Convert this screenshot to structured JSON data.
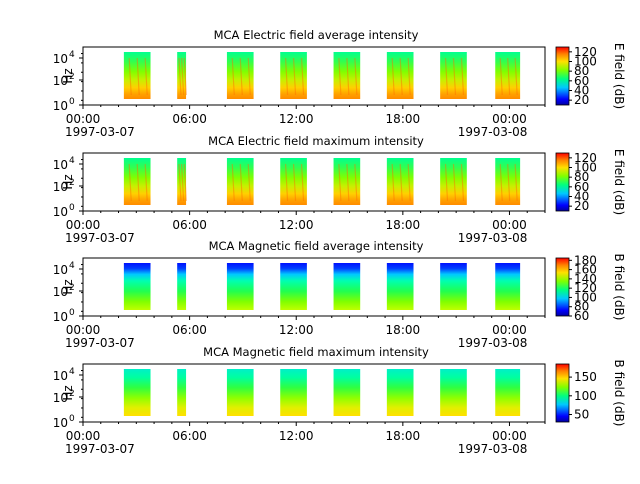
{
  "x_tick_labels": [
    "00:00",
    "06:00",
    "12:00",
    "18:00",
    "00:00"
  ],
  "date_start": "1997-03-07",
  "date_end": "1997-03-08",
  "y_tick_exponents": [
    "0",
    "2",
    "4"
  ],
  "y_tick_base": "10",
  "chart_data": [
    {
      "type": "heatmap",
      "title": "MCA  Electric field average intensity",
      "ylabel": "Hz",
      "yscale": "log",
      "ylim": [
        1,
        50000
      ],
      "xlim": [
        "1997-03-07T00:00",
        "1997-03-08T00:00"
      ],
      "colorbar_label": "E field (dB)",
      "colorbar_ticks": [
        "20",
        "40",
        "60",
        "80",
        "100",
        "120"
      ],
      "colorbar_range": [
        10,
        130
      ],
      "data_blocks_hours": [
        [
          2.3,
          3.8
        ],
        [
          5.3,
          5.8
        ],
        [
          8.1,
          9.6
        ],
        [
          11.1,
          12.6
        ],
        [
          14.1,
          15.6
        ],
        [
          17.1,
          18.6
        ],
        [
          20.1,
          21.6
        ],
        [
          23.2,
          24.6
        ]
      ],
      "level_profile": "electric"
    },
    {
      "type": "heatmap",
      "title": "MCA  Electric field maximum intensity",
      "ylabel": "Hz",
      "yscale": "log",
      "ylim": [
        1,
        50000
      ],
      "xlim": [
        "1997-03-07T00:00",
        "1997-03-08T00:00"
      ],
      "colorbar_label": "E field (dB)",
      "colorbar_ticks": [
        "20",
        "40",
        "60",
        "80",
        "100",
        "120"
      ],
      "colorbar_range": [
        10,
        130
      ],
      "data_blocks_hours": [
        [
          2.3,
          3.8
        ],
        [
          5.3,
          5.8
        ],
        [
          8.1,
          9.6
        ],
        [
          11.1,
          12.6
        ],
        [
          14.1,
          15.6
        ],
        [
          17.1,
          18.6
        ],
        [
          20.1,
          21.6
        ],
        [
          23.2,
          24.6
        ]
      ],
      "level_profile": "electric"
    },
    {
      "type": "heatmap",
      "title": "MCA  Magnetic field average intensity",
      "ylabel": "Hz",
      "yscale": "log",
      "ylim": [
        1,
        50000
      ],
      "xlim": [
        "1997-03-07T00:00",
        "1997-03-08T00:00"
      ],
      "colorbar_label": "B field (dB)",
      "colorbar_ticks": [
        "60",
        "80",
        "100",
        "120",
        "140",
        "160",
        "180"
      ],
      "colorbar_range": [
        60,
        185
      ],
      "data_blocks_hours": [
        [
          2.3,
          3.8
        ],
        [
          5.3,
          5.8
        ],
        [
          8.1,
          9.6
        ],
        [
          11.1,
          12.6
        ],
        [
          14.1,
          15.6
        ],
        [
          17.1,
          18.6
        ],
        [
          20.1,
          21.6
        ],
        [
          23.2,
          24.6
        ]
      ],
      "level_profile": "magnetic-avg"
    },
    {
      "type": "heatmap",
      "title": "MCA  Magnetic field maximum intensity",
      "ylabel": "Hz",
      "yscale": "log",
      "ylim": [
        1,
        50000
      ],
      "xlim": [
        "1997-03-07T00:00",
        "1997-03-08T00:00"
      ],
      "colorbar_label": "B field (dB)",
      "colorbar_ticks": [
        "50",
        "100",
        "150"
      ],
      "colorbar_range": [
        30,
        185
      ],
      "data_blocks_hours": [
        [
          2.3,
          3.8
        ],
        [
          5.3,
          5.8
        ],
        [
          8.1,
          9.6
        ],
        [
          11.1,
          12.6
        ],
        [
          14.1,
          15.6
        ],
        [
          17.1,
          18.6
        ],
        [
          20.1,
          21.6
        ],
        [
          23.2,
          24.6
        ]
      ],
      "level_profile": "magnetic-max"
    }
  ]
}
